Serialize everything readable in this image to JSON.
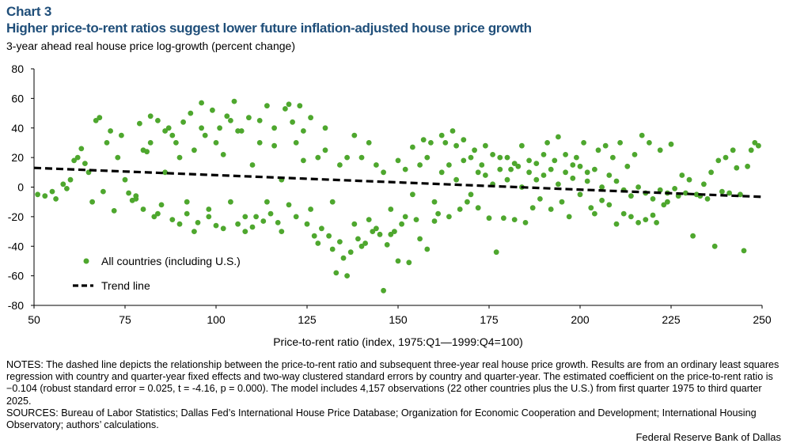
{
  "chart_label": "Chart 3",
  "notes": {
    "notes_text": "NOTES: The dashed line depicts the relationship between the price-to-rent ratio and subsequent three-year real house price growth. Results are from an ordinary least squares regression with country and quarter-year fixed effects and two-way clustered standard errors by country and quarter-year. The estimated coefficient on the price-to-rent ratio is −0.104 (robust standard error = 0.025, t = -4.16, p = 0.000). The model includes 4,157 observations (22 other countries plus the U.S.) from first quarter 1975 to third quarter 2025.",
    "sources_text": "SOURCES: Bureau of Labor Statistics; Dallas Fed’s International House Price Database; Organization for Economic Cooperation and Development; International Housing Observatory; authors’ calculations."
  },
  "credit": "Federal Reserve Bank of Dallas",
  "colors": {
    "title": "#1f4e79",
    "points": "#4ea72e",
    "trend": "#000000",
    "axis": "#000000"
  },
  "chart_data": {
    "type": "scatter",
    "title": "Higher price-to-rent ratios suggest lower future inflation-adjusted house price growth",
    "ylabel": "3-year ahead real house price log-growth (percent change)",
    "xlabel": "Price-to-rent ratio (index, 1975:Q1—1999:Q4=100)",
    "xlim": [
      50,
      250
    ],
    "ylim": [
      -80,
      80
    ],
    "xticks": [
      "50",
      "75",
      "100",
      "125",
      "150",
      "175",
      "200",
      "225",
      "250"
    ],
    "yticks": [
      "80",
      "60",
      "40",
      "20",
      "0",
      "-20",
      "-40",
      "-60",
      "-80"
    ],
    "grid": false,
    "legend_position": "bottom-left",
    "series": [
      {
        "name": "All countries (including U.S.)",
        "kind": "scatter",
        "points": [
          [
            51,
            -5
          ],
          [
            53,
            -6
          ],
          [
            55,
            -3
          ],
          [
            56,
            -8
          ],
          [
            58,
            2
          ],
          [
            59,
            -1
          ],
          [
            60,
            5
          ],
          [
            61,
            18
          ],
          [
            62,
            20
          ],
          [
            63,
            26
          ],
          [
            64,
            16
          ],
          [
            65,
            10
          ],
          [
            66,
            -10
          ],
          [
            67,
            45
          ],
          [
            68,
            47
          ],
          [
            69,
            -3
          ],
          [
            70,
            30
          ],
          [
            71,
            38
          ],
          [
            72,
            -16
          ],
          [
            73,
            20
          ],
          [
            74,
            35
          ],
          [
            75,
            5
          ],
          [
            76,
            -4
          ],
          [
            77,
            -9
          ],
          [
            78,
            -6
          ],
          [
            79,
            43
          ],
          [
            80,
            -15
          ],
          [
            81,
            24
          ],
          [
            82,
            48
          ],
          [
            83,
            -20
          ],
          [
            84,
            45
          ],
          [
            85,
            -12
          ],
          [
            86,
            38
          ],
          [
            87,
            40
          ],
          [
            88,
            -22
          ],
          [
            89,
            30
          ],
          [
            90,
            -25
          ],
          [
            91,
            44
          ],
          [
            92,
            -18
          ],
          [
            93,
            50
          ],
          [
            94,
            -30
          ],
          [
            95,
            -24
          ],
          [
            96,
            57
          ],
          [
            97,
            35
          ],
          [
            98,
            -20
          ],
          [
            99,
            52
          ],
          [
            100,
            -26
          ],
          [
            101,
            40
          ],
          [
            102,
            -28
          ],
          [
            103,
            48
          ],
          [
            104,
            45
          ],
          [
            105,
            58
          ],
          [
            106,
            -25
          ],
          [
            107,
            38
          ],
          [
            108,
            -30
          ],
          [
            109,
            47
          ],
          [
            110,
            -27
          ],
          [
            111,
            -20
          ],
          [
            112,
            45
          ],
          [
            113,
            -23
          ],
          [
            114,
            55
          ],
          [
            115,
            -18
          ],
          [
            116,
            40
          ],
          [
            117,
            -24
          ],
          [
            118,
            -30
          ],
          [
            119,
            53
          ],
          [
            120,
            56
          ],
          [
            121,
            44
          ],
          [
            122,
            -20
          ],
          [
            123,
            55
          ],
          [
            124,
            38
          ],
          [
            125,
            -25
          ],
          [
            126,
            47
          ],
          [
            127,
            -33
          ],
          [
            128,
            -38
          ],
          [
            129,
            -28
          ],
          [
            130,
            40
          ],
          [
            131,
            -33
          ],
          [
            132,
            -42
          ],
          [
            133,
            -58
          ],
          [
            134,
            -37
          ],
          [
            135,
            -48
          ],
          [
            136,
            -60
          ],
          [
            137,
            -44
          ],
          [
            138,
            35
          ],
          [
            139,
            -35
          ],
          [
            140,
            -40
          ],
          [
            141,
            -38
          ],
          [
            142,
            30
          ],
          [
            143,
            -30
          ],
          [
            144,
            -28
          ],
          [
            145,
            -32
          ],
          [
            146,
            -70
          ],
          [
            147,
            -39
          ],
          [
            148,
            -32
          ],
          [
            149,
            -30
          ],
          [
            150,
            -50
          ],
          [
            151,
            -25
          ],
          [
            152,
            -20
          ],
          [
            153,
            -51
          ],
          [
            154,
            27
          ],
          [
            155,
            -22
          ],
          [
            156,
            -35
          ],
          [
            157,
            32
          ],
          [
            158,
            -42
          ],
          [
            159,
            30
          ],
          [
            160,
            -23
          ],
          [
            161,
            -18
          ],
          [
            162,
            35
          ],
          [
            163,
            30
          ],
          [
            164,
            -20
          ],
          [
            165,
            38
          ],
          [
            166,
            28
          ],
          [
            167,
            -15
          ],
          [
            168,
            32
          ],
          [
            169,
            -10
          ],
          [
            170,
            20
          ],
          [
            171,
            25
          ],
          [
            172,
            -14
          ],
          [
            173,
            15
          ],
          [
            174,
            28
          ],
          [
            175,
            -21
          ],
          [
            176,
            22
          ],
          [
            177,
            -44
          ],
          [
            178,
            20
          ],
          [
            179,
            -21
          ],
          [
            180,
            20
          ],
          [
            181,
            12
          ],
          [
            182,
            -22
          ],
          [
            183,
            14
          ],
          [
            184,
            28
          ],
          [
            185,
            -24
          ],
          [
            186,
            10
          ],
          [
            187,
            -14
          ],
          [
            188,
            16
          ],
          [
            189,
            -8
          ],
          [
            190,
            22
          ],
          [
            191,
            30
          ],
          [
            192,
            -15
          ],
          [
            193,
            18
          ],
          [
            194,
            34
          ],
          [
            195,
            -10
          ],
          [
            196,
            22
          ],
          [
            197,
            -20
          ],
          [
            198,
            15
          ],
          [
            199,
            20
          ],
          [
            200,
            -5
          ],
          [
            201,
            30
          ],
          [
            202,
            10
          ],
          [
            203,
            -14
          ],
          [
            204,
            -18
          ],
          [
            205,
            25
          ],
          [
            206,
            -9
          ],
          [
            207,
            28
          ],
          [
            208,
            -12
          ],
          [
            209,
            20
          ],
          [
            210,
            -25
          ],
          [
            211,
            30
          ],
          [
            212,
            -18
          ],
          [
            213,
            14
          ],
          [
            214,
            -20
          ],
          [
            215,
            22
          ],
          [
            216,
            -24
          ],
          [
            217,
            35
          ],
          [
            218,
            -22
          ],
          [
            219,
            30
          ],
          [
            220,
            -19
          ],
          [
            221,
            -24
          ],
          [
            222,
            25
          ],
          [
            223,
            -12
          ],
          [
            224,
            -4
          ],
          [
            225,
            29
          ],
          [
            226,
            -1
          ],
          [
            227,
            -6
          ],
          [
            228,
            8
          ],
          [
            229,
            -4
          ],
          [
            230,
            5
          ],
          [
            231,
            -33
          ],
          [
            232,
            -5
          ],
          [
            233,
            -6
          ],
          [
            234,
            2
          ],
          [
            235,
            -8
          ],
          [
            236,
            10
          ],
          [
            237,
            -40
          ],
          [
            238,
            18
          ],
          [
            239,
            -3
          ],
          [
            240,
            20
          ],
          [
            241,
            -4
          ],
          [
            242,
            25
          ],
          [
            243,
            13
          ],
          [
            244,
            -5
          ],
          [
            245,
            -43
          ],
          [
            246,
            14
          ],
          [
            247,
            25
          ],
          [
            248,
            30
          ],
          [
            249,
            28
          ],
          [
            78,
            -8
          ],
          [
            80,
            25
          ],
          [
            82,
            30
          ],
          [
            84,
            -18
          ],
          [
            86,
            10
          ],
          [
            88,
            35
          ],
          [
            90,
            20
          ],
          [
            92,
            -10
          ],
          [
            94,
            25
          ],
          [
            96,
            40
          ],
          [
            98,
            -15
          ],
          [
            100,
            30
          ],
          [
            102,
            22
          ],
          [
            104,
            -10
          ],
          [
            106,
            38
          ],
          [
            108,
            -20
          ],
          [
            110,
            15
          ],
          [
            112,
            30
          ],
          [
            114,
            -10
          ],
          [
            116,
            28
          ],
          [
            118,
            5
          ],
          [
            120,
            -12
          ],
          [
            122,
            30
          ],
          [
            124,
            18
          ],
          [
            126,
            -15
          ],
          [
            128,
            20
          ],
          [
            130,
            25
          ],
          [
            132,
            -10
          ],
          [
            134,
            15
          ],
          [
            136,
            20
          ],
          [
            138,
            -25
          ],
          [
            140,
            20
          ],
          [
            142,
            -22
          ],
          [
            144,
            15
          ],
          [
            146,
            10
          ],
          [
            148,
            -15
          ],
          [
            150,
            18
          ],
          [
            152,
            12
          ],
          [
            154,
            -5
          ],
          [
            156,
            15
          ],
          [
            158,
            20
          ],
          [
            160,
            -10
          ],
          [
            162,
            10
          ],
          [
            164,
            15
          ],
          [
            166,
            5
          ],
          [
            168,
            18
          ],
          [
            170,
            -5
          ],
          [
            172,
            10
          ],
          [
            174,
            8
          ],
          [
            176,
            2
          ],
          [
            178,
            12
          ],
          [
            180,
            5
          ],
          [
            182,
            16
          ],
          [
            184,
            0
          ],
          [
            186,
            18
          ],
          [
            188,
            5
          ],
          [
            190,
            8
          ],
          [
            192,
            12
          ],
          [
            194,
            2
          ],
          [
            196,
            10
          ],
          [
            198,
            6
          ],
          [
            200,
            14
          ],
          [
            202,
            4
          ],
          [
            204,
            12
          ],
          [
            206,
            0
          ],
          [
            208,
            8
          ],
          [
            210,
            4
          ],
          [
            212,
            -2
          ],
          [
            214,
            -6
          ],
          [
            216,
            0
          ],
          [
            218,
            -4
          ],
          [
            220,
            -8
          ],
          [
            222,
            -2
          ],
          [
            224,
            -10
          ]
        ]
      },
      {
        "name": "Trend line",
        "kind": "line",
        "points": [
          [
            50,
            13
          ],
          [
            250,
            -6.6
          ]
        ]
      }
    ]
  }
}
